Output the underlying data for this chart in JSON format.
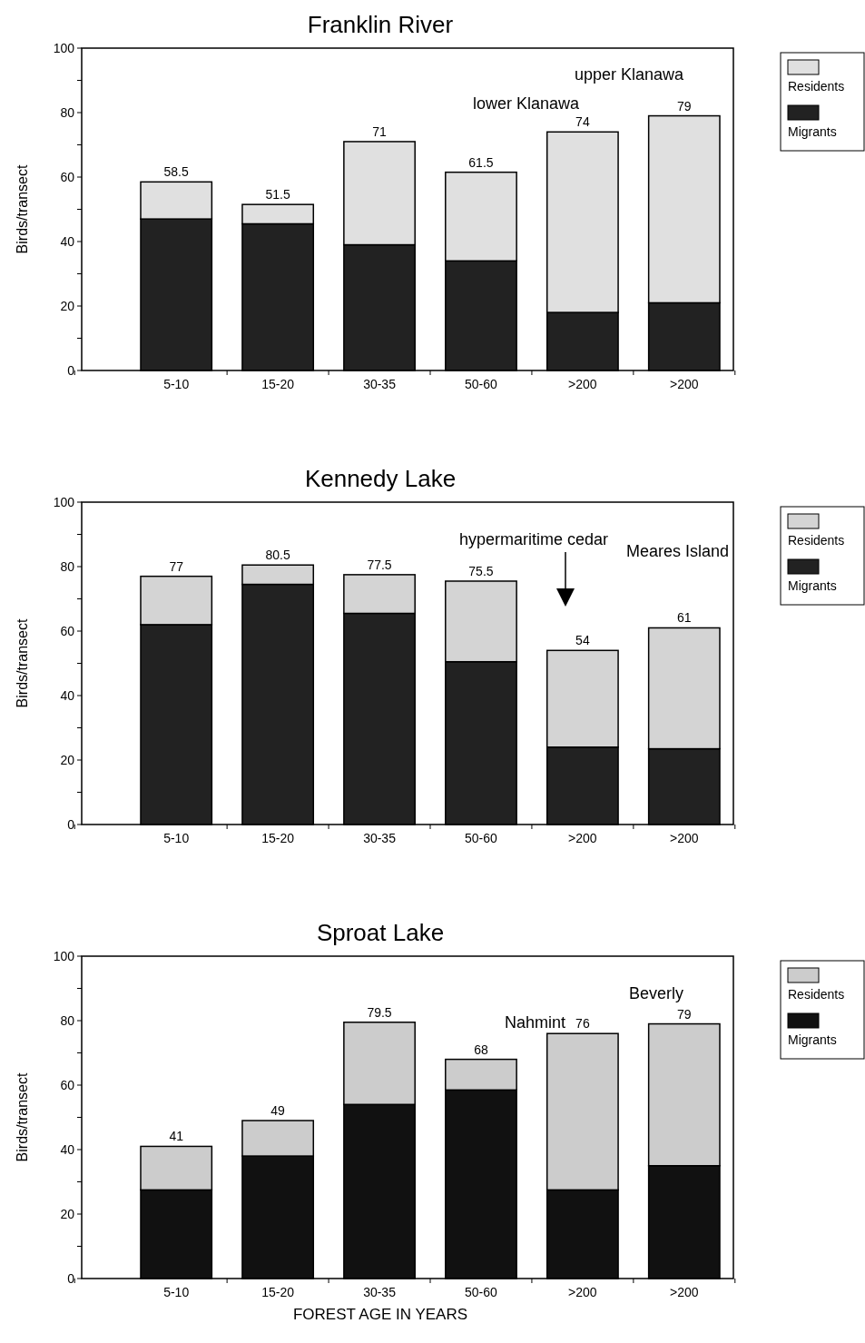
{
  "chart_data": [
    {
      "type": "bar",
      "title": "Franklin River",
      "ylabel": "Birds/transect",
      "categories": [
        "5-10",
        "15-20",
        "30-35",
        "50-60",
        ">200",
        ">200"
      ],
      "stacked": true,
      "series": [
        {
          "name": "Migrants",
          "color": "#222222",
          "values": [
            47,
            45.5,
            39,
            34,
            18,
            21
          ]
        },
        {
          "name": "Residents",
          "color": "#e0e0e0",
          "values": [
            11.5,
            6,
            32,
            27.5,
            56,
            58
          ]
        }
      ],
      "totals": [
        "58.5",
        "51.5",
        "71",
        "61.5",
        "74",
        "79"
      ],
      "ylim": [
        0,
        100
      ],
      "yticks": [
        0,
        {
          "value": 10,
          "label": null
        },
        20,
        {
          "value": 30,
          "label": null
        },
        40,
        {
          "value": 50,
          "label": null
        },
        60,
        {
          "value": 70,
          "label": null
        },
        80,
        {
          "value": 90,
          "label": null
        },
        100
      ],
      "annotations": [
        "upper Klanawa",
        "lower Klanawa"
      ],
      "legend": "right",
      "grid": false
    },
    {
      "type": "bar",
      "title": "Kennedy Lake",
      "ylabel": "Birds/transect",
      "categories": [
        "5-10",
        "15-20",
        "30-35",
        "50-60",
        ">200",
        ">200"
      ],
      "stacked": true,
      "series": [
        {
          "name": "Migrants",
          "color": "#222222",
          "values": [
            62,
            74.5,
            65.5,
            50.5,
            24,
            23.5
          ]
        },
        {
          "name": "Residents",
          "color": "#d4d4d4",
          "values": [
            15,
            6,
            12,
            25,
            30,
            37.5
          ]
        }
      ],
      "totals": [
        "77",
        "80.5",
        "77.5",
        "75.5",
        "54",
        "61"
      ],
      "ylim": [
        0,
        100
      ],
      "yticks": [
        0,
        {
          "value": 10,
          "label": null
        },
        20,
        {
          "value": 30,
          "label": null
        },
        40,
        {
          "value": 50,
          "label": null
        },
        60,
        {
          "value": 70,
          "label": null
        },
        80,
        {
          "value": 90,
          "label": null
        },
        100
      ],
      "annotations": [
        "hypermaritime cedar",
        "Meares Island"
      ],
      "legend": "right",
      "grid": false
    },
    {
      "type": "bar",
      "title": "Sproat Lake",
      "ylabel": "Birds/transect",
      "xlabel": "FOREST AGE IN YEARS",
      "categories": [
        "5-10",
        "15-20",
        "30-35",
        "50-60",
        ">200",
        ">200"
      ],
      "stacked": true,
      "series": [
        {
          "name": "Migrants",
          "color": "#111111",
          "values": [
            27.5,
            38,
            54,
            58.5,
            27.5,
            35
          ]
        },
        {
          "name": "Residents",
          "color": "#cccccc",
          "values": [
            13.5,
            11,
            25.5,
            9.5,
            48.5,
            44
          ]
        }
      ],
      "totals": [
        "41",
        "49",
        "79.5",
        "68",
        "76",
        "79"
      ],
      "ylim": [
        0,
        100
      ],
      "yticks": [
        0,
        {
          "value": 10,
          "label": null
        },
        20,
        {
          "value": 30,
          "label": null
        },
        40,
        {
          "value": 50,
          "label": null
        },
        60,
        {
          "value": 70,
          "label": null
        },
        80,
        {
          "value": 90,
          "label": null
        },
        100
      ],
      "annotations": [
        "Nahmint",
        "Beverly"
      ],
      "legend": "right",
      "grid": false
    }
  ]
}
